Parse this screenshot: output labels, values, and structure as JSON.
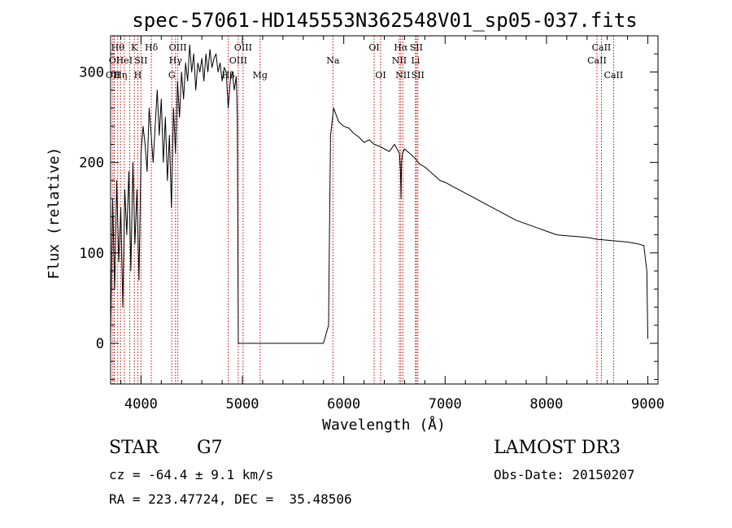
{
  "chart_data": {
    "type": "line",
    "title": "spec-57061-HD145553N362548V01_sp05-037.fits",
    "xlabel": "Wavelength (Å)",
    "ylabel": "Flux (relative)",
    "xlim": [
      3700,
      9100
    ],
    "ylim": [
      -45,
      340
    ],
    "x_ticks": [
      4000,
      5000,
      6000,
      7000,
      8000,
      9000
    ],
    "y_ticks": [
      0,
      100,
      200,
      300
    ],
    "grid": false,
    "line_color": "#000000",
    "marker_color": "#cc0000",
    "series": [
      {
        "name": "spectrum",
        "x": [
          3700,
          3720,
          3740,
          3760,
          3780,
          3800,
          3820,
          3840,
          3860,
          3880,
          3900,
          3920,
          3940,
          3960,
          3980,
          4000,
          4020,
          4040,
          4060,
          4080,
          4100,
          4120,
          4140,
          4160,
          4180,
          4200,
          4220,
          4240,
          4260,
          4280,
          4300,
          4320,
          4340,
          4360,
          4380,
          4400,
          4420,
          4440,
          4460,
          4480,
          4500,
          4520,
          4540,
          4560,
          4580,
          4600,
          4620,
          4640,
          4660,
          4680,
          4700,
          4720,
          4740,
          4760,
          4780,
          4800,
          4820,
          4840,
          4860,
          4880,
          4900,
          4920,
          4940,
          4950,
          4960,
          5000,
          5500,
          5800,
          5850,
          5855,
          5860,
          5870,
          5880,
          5900,
          5950,
          6000,
          6050,
          6100,
          6150,
          6200,
          6250,
          6300,
          6350,
          6400,
          6450,
          6500,
          6550,
          6560,
          6565,
          6570,
          6580,
          6600,
          6650,
          6700,
          6750,
          6800,
          6850,
          6900,
          6950,
          7000,
          7100,
          7200,
          7300,
          7400,
          7500,
          7600,
          7700,
          7800,
          7900,
          8000,
          8100,
          8200,
          8300,
          8400,
          8500,
          8600,
          8700,
          8800,
          8900,
          8960,
          8990,
          9000
        ],
        "values": [
          5,
          160,
          60,
          180,
          90,
          150,
          40,
          170,
          120,
          190,
          80,
          200,
          110,
          170,
          70,
          210,
          240,
          220,
          190,
          260,
          230,
          200,
          240,
          280,
          230,
          270,
          200,
          250,
          180,
          230,
          150,
          260,
          210,
          290,
          250,
          300,
          270,
          310,
          290,
          330,
          300,
          320,
          280,
          310,
          300,
          315,
          290,
          320,
          300,
          325,
          305,
          315,
          320,
          300,
          310,
          290,
          305,
          300,
          260,
          290,
          300,
          280,
          295,
          250,
          0,
          0,
          0,
          0,
          20,
          80,
          130,
          230,
          240,
          260,
          245,
          240,
          238,
          232,
          228,
          222,
          225,
          220,
          218,
          215,
          212,
          220,
          210,
          190,
          160,
          200,
          210,
          215,
          210,
          205,
          198,
          195,
          190,
          185,
          180,
          178,
          172,
          166,
          160,
          154,
          148,
          142,
          136,
          132,
          128,
          124,
          120,
          119,
          118,
          117,
          115,
          114,
          113,
          112,
          110,
          108,
          80,
          5
        ]
      }
    ],
    "line_markers": [
      {
        "wl": 3722,
        "label": "OII",
        "row": 2
      },
      {
        "wl": 3736,
        "label": "OI",
        "row": 1
      },
      {
        "wl": 3770,
        "label": "Hθ",
        "row": 0
      },
      {
        "wl": 3798,
        "label": "Hη",
        "row": 2
      },
      {
        "wl": 3835,
        "label": "HeI",
        "row": 1
      },
      {
        "wl": 3889,
        "label": "",
        "row": 0
      },
      {
        "wl": 3934,
        "label": "K",
        "row": 0
      },
      {
        "wl": 3968,
        "label": "H",
        "row": 2
      },
      {
        "wl": 4000,
        "label": "SII",
        "row": 1
      },
      {
        "wl": 4102,
        "label": "Hδ",
        "row": 0
      },
      {
        "wl": 4304,
        "label": "G",
        "row": 2
      },
      {
        "wl": 4340,
        "label": "Hγ",
        "row": 1
      },
      {
        "wl": 4363,
        "label": "OIII",
        "row": 0
      },
      {
        "wl": 4861,
        "label": "Hβ",
        "row": 2
      },
      {
        "wl": 4959,
        "label": "OIII",
        "row": 1
      },
      {
        "wl": 5007,
        "label": "OIII",
        "row": 0
      },
      {
        "wl": 5175,
        "label": "Mg",
        "row": 2
      },
      {
        "wl": 5893,
        "label": "Na",
        "row": 1
      },
      {
        "wl": 6300,
        "label": "OI",
        "row": 0
      },
      {
        "wl": 6364,
        "label": "OI",
        "row": 2
      },
      {
        "wl": 6548,
        "label": "NII",
        "row": 1
      },
      {
        "wl": 6563,
        "label": "Hα",
        "row": 0
      },
      {
        "wl": 6583,
        "label": "NII",
        "row": 2
      },
      {
        "wl": 6708,
        "label": "Li",
        "row": 1
      },
      {
        "wl": 6716,
        "label": "SII",
        "row": 0
      },
      {
        "wl": 6731,
        "label": "SII",
        "row": 2
      },
      {
        "wl": 8498,
        "label": "CaII",
        "row": 1
      },
      {
        "wl": 8542,
        "label": "CaII",
        "row": 0
      },
      {
        "wl": 8662,
        "label": "CaII",
        "row": 2
      }
    ]
  },
  "info": {
    "object_class": "STAR",
    "subclass": "G7",
    "cz": "cz = -64.4 ± 9.1 km/s",
    "radec": "RA = 223.47724, DEC =  35.48506",
    "survey": "LAMOST DR3",
    "obs_date": "Obs-Date: 20150207"
  }
}
